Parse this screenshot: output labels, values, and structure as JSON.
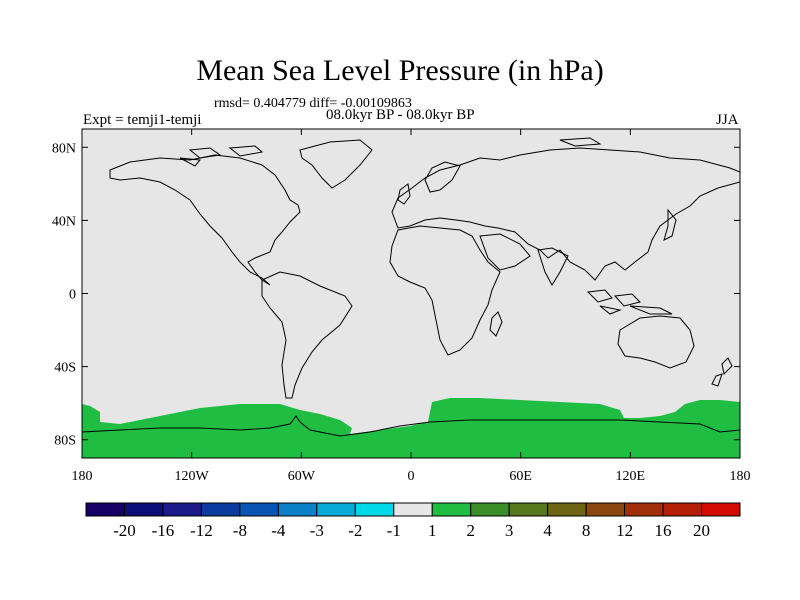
{
  "title": "Mean Sea Level Pressure (in hPa)",
  "subtitle_stats": "rmsd= 0.404779 diff= -0.00109863",
  "subtitle_period": "08.0kyr BP - 08.0kyr BP",
  "experiment": "Expt = temji1-temji",
  "season": "JJA",
  "map": {
    "projection": "cylindrical-equidistant",
    "lon_range": [
      -180,
      180
    ],
    "lat_range": [
      -90,
      90
    ],
    "background_color": "#e6e6e6",
    "coastline_color": "#000000",
    "x_ticks": [
      {
        "value": -180,
        "label": "180"
      },
      {
        "value": -120,
        "label": "120W"
      },
      {
        "value": -60,
        "label": "60W"
      },
      {
        "value": 0,
        "label": "0"
      },
      {
        "value": 60,
        "label": "60E"
      },
      {
        "value": 120,
        "label": "120E"
      },
      {
        "value": 180,
        "label": "180"
      }
    ],
    "y_ticks": [
      {
        "value": 80,
        "label": "80N"
      },
      {
        "value": 40,
        "label": "40N"
      },
      {
        "value": 0,
        "label": "0"
      },
      {
        "value": -40,
        "label": "40S"
      },
      {
        "value": -80,
        "label": "80S"
      }
    ],
    "filled_region": {
      "color": "#1fbe43",
      "range": "1 to 2",
      "location": "Antarctic margin"
    }
  },
  "colorbar": {
    "colors": [
      "#160066",
      "#0e0e78",
      "#1a1a8a",
      "#0a3ca0",
      "#0a55b4",
      "#0a80c8",
      "#0aaad8",
      "#00d8e8",
      "#e6e6e6",
      "#1fbe43",
      "#3c8c28",
      "#55781c",
      "#6e6414",
      "#8c4610",
      "#a0300a",
      "#b41e06",
      "#d20a02"
    ],
    "labels": [
      "-20",
      "-16",
      "-12",
      "-8",
      "-4",
      "-3",
      "-2",
      "-1",
      "1",
      "2",
      "3",
      "4",
      "8",
      "12",
      "16",
      "20"
    ]
  }
}
